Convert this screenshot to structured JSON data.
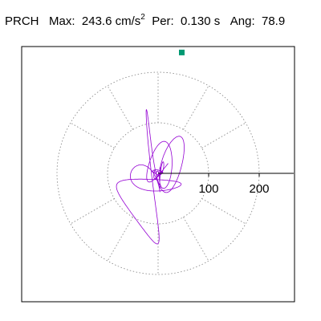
{
  "header": {
    "station": "PRCH",
    "max_label": "Max:",
    "max_value": "243.6",
    "max_unit": "cm/s",
    "max_unit_exp": "2",
    "per_label": "Per:",
    "per_value": "0.130 s",
    "ang_label": "Ang:",
    "ang_value": "78.9"
  },
  "chart_data": {
    "type": "polar-orbit",
    "r_ticks": [
      100,
      200
    ],
    "r_tick_labels": [
      "100",
      "200"
    ],
    "r_max": 243.6,
    "peak_angle_deg": 78.9,
    "grid": "dotted",
    "spoke_angles_deg": [
      30,
      60,
      90,
      120,
      150,
      210,
      240,
      270,
      300,
      330
    ],
    "colors": {
      "trace": "#9400d3",
      "marker": "#009973",
      "grid": "#808080",
      "axis": "#000000"
    }
  }
}
